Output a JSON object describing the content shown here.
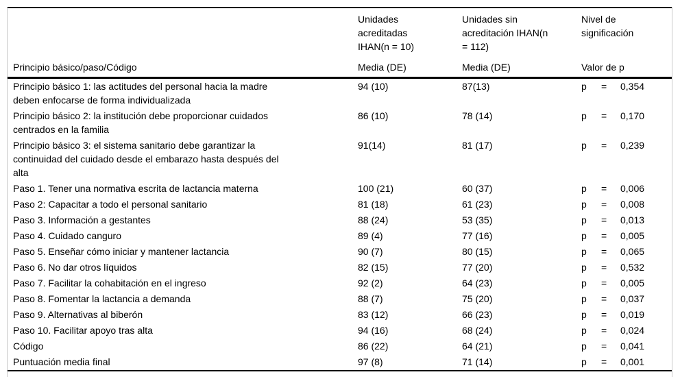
{
  "table": {
    "columns": {
      "col1_header": "Principio básico/paso/Código",
      "col2_header_lines": [
        "Unidades",
        "acreditadas",
        "IHAN(n = 10)"
      ],
      "col3_header_lines": [
        "Unidades sin",
        "acreditación IHAN(n",
        "= 112)"
      ],
      "col4_header_lines": [
        "Nivel de",
        "significación"
      ],
      "col2_subheader": "Media (DE)",
      "col3_subheader": "Media (DE)",
      "col4_subheader": "Valor de p"
    },
    "p_symbol": "p",
    "equals_symbol": "=",
    "rows": [
      {
        "label_lines": [
          "Principio básico 1: las actitudes del personal hacia la madre",
          "deben enfocarse de forma individualizada"
        ],
        "accredited": "94 (10)",
        "non_accredited": "87(13)",
        "p_value": "0,354"
      },
      {
        "label_lines": [
          "Principio básico 2: la institución debe proporcionar cuidados",
          "centrados en la familia"
        ],
        "accredited": "86 (10)",
        "non_accredited": "78 (14)",
        "p_value": "0,170"
      },
      {
        "label_lines": [
          "Principio básico 3: el sistema sanitario debe garantizar la",
          "continuidad del cuidado desde el embarazo hasta después del",
          "alta"
        ],
        "accredited": "91(14)",
        "non_accredited": "81 (17)",
        "p_value": "0,239"
      },
      {
        "label_lines": [
          "Paso 1. Tener una normativa escrita de lactancia materna"
        ],
        "accredited": "100 (21)",
        "non_accredited": "60 (37)",
        "p_value": "0,006"
      },
      {
        "label_lines": [
          "Paso 2: Capacitar a todo el personal sanitario"
        ],
        "accredited": "81 (18)",
        "non_accredited": "61 (23)",
        "p_value": "0,008"
      },
      {
        "label_lines": [
          "Paso 3. Información a gestantes"
        ],
        "accredited": "88 (24)",
        "non_accredited": "53 (35)",
        "p_value": "0,013"
      },
      {
        "label_lines": [
          "Paso 4. Cuidado canguro"
        ],
        "accredited": "89 (4)",
        "non_accredited": "77 (16)",
        "p_value": "0,005"
      },
      {
        "label_lines": [
          "Paso 5. Enseñar cómo iniciar y mantener lactancia"
        ],
        "accredited": "90 (7)",
        "non_accredited": "80 (15)",
        "p_value": "0,065"
      },
      {
        "label_lines": [
          "Paso 6. No dar otros líquidos"
        ],
        "accredited": "82 (15)",
        "non_accredited": "77 (20)",
        "p_value": "0,532"
      },
      {
        "label_lines": [
          "Paso 7. Facilitar la cohabitación en el ingreso"
        ],
        "accredited": "92 (2)",
        "non_accredited": "64 (23)",
        "p_value": "0,005"
      },
      {
        "label_lines": [
          "Paso 8. Fomentar la lactancia a demanda"
        ],
        "accredited": "88 (7)",
        "non_accredited": "75 (20)",
        "p_value": "0,037"
      },
      {
        "label_lines": [
          "Paso 9. Alternativas al biberón"
        ],
        "accredited": "83 (12)",
        "non_accredited": "66 (23)",
        "p_value": "0,019"
      },
      {
        "label_lines": [
          "Paso 10. Facilitar apoyo tras alta"
        ],
        "accredited": "94 (16)",
        "non_accredited": "68 (24)",
        "p_value": "0,024"
      },
      {
        "label_lines": [
          "Código"
        ],
        "accredited": "86 (22)",
        "non_accredited": "64 (21)",
        "p_value": "0,041"
      },
      {
        "label_lines": [
          "Puntuación media final"
        ],
        "accredited": "97 (8)",
        "non_accredited": "71 (14)",
        "p_value": "0,001"
      }
    ]
  }
}
